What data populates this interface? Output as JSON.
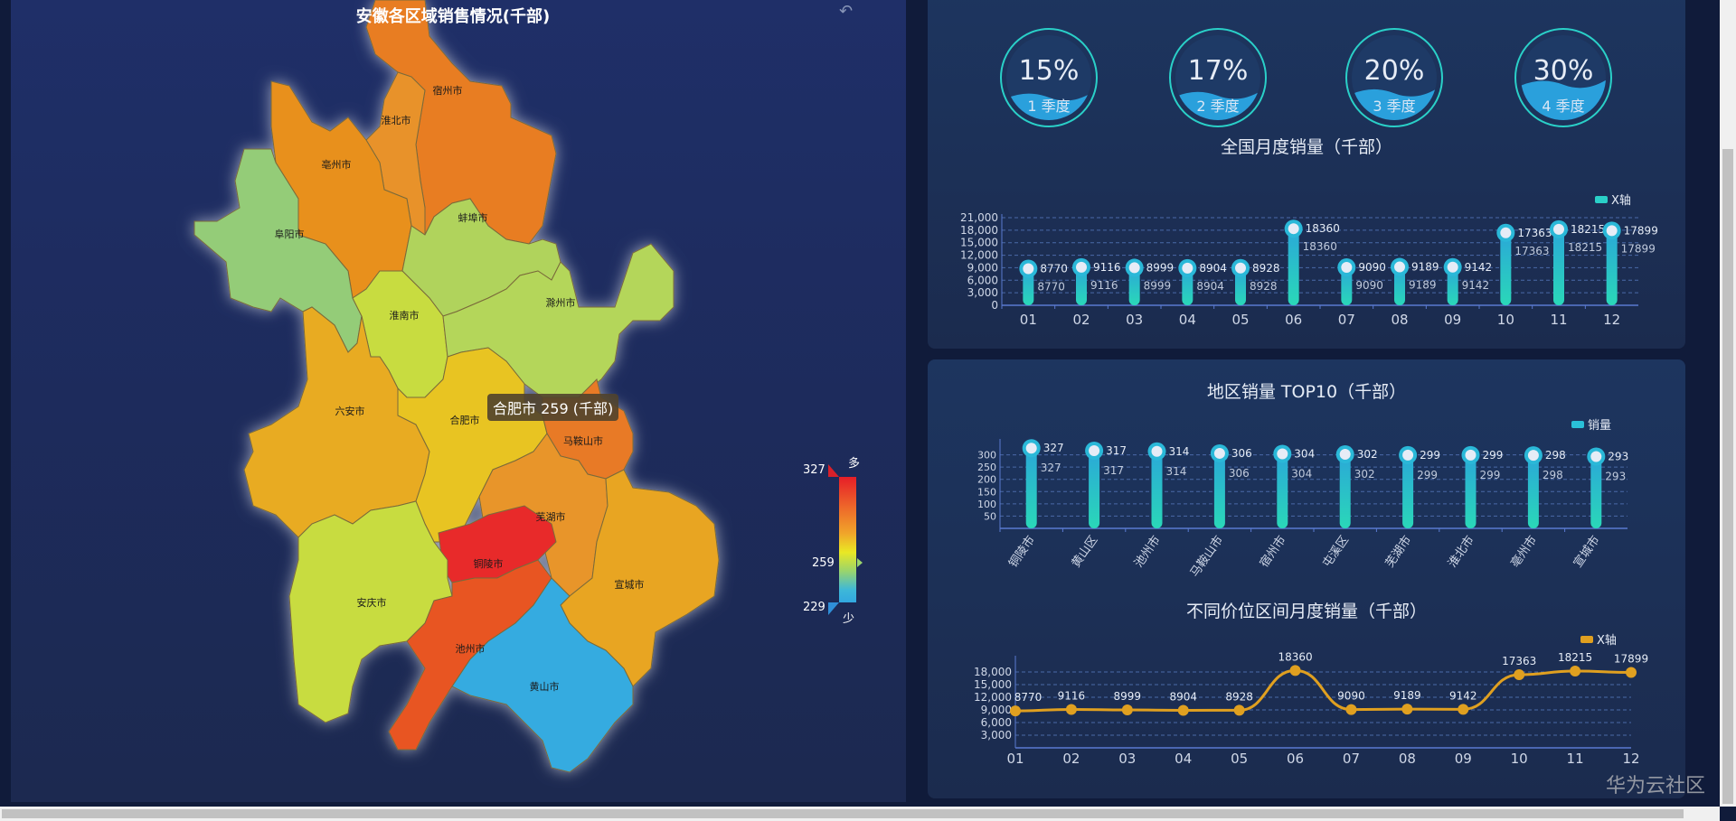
{
  "map": {
    "title": "安徽各区域销售情况(千部)",
    "restore_icon": "restore-icon",
    "tooltip": "合肥市 259 (千部)",
    "visual_map": {
      "max": "327",
      "current": "259",
      "min": "229",
      "high_label": "多",
      "low_label": "少"
    },
    "regions": [
      {
        "name": "宿州市",
        "color": "#e87d24"
      },
      {
        "name": "淮北市",
        "color": "#e8922a"
      },
      {
        "name": "亳州市",
        "color": "#e8901f"
      },
      {
        "name": "阜阳市",
        "color": "#94cc78"
      },
      {
        "name": "蚌埠市",
        "color": "#b0d35c"
      },
      {
        "name": "淮南市",
        "color": "#c8dc40"
      },
      {
        "name": "滁州市",
        "color": "#b4d65a"
      },
      {
        "name": "六安市",
        "color": "#e8ab22"
      },
      {
        "name": "合肥市",
        "color": "#e8c420"
      },
      {
        "name": "马鞍山市",
        "color": "#e87a28"
      },
      {
        "name": "芜湖市",
        "color": "#e8952a"
      },
      {
        "name": "铜陵市",
        "color": "#e82a2a"
      },
      {
        "name": "宣城市",
        "color": "#e8a522"
      },
      {
        "name": "安庆市",
        "color": "#c8dc40"
      },
      {
        "name": "池州市",
        "color": "#e85522"
      },
      {
        "name": "黄山市",
        "color": "#35abe0"
      }
    ]
  },
  "gauges": [
    {
      "percent": "15%",
      "label": "1 季度",
      "level": 0.15
    },
    {
      "percent": "17%",
      "label": "2 季度",
      "level": 0.17
    },
    {
      "percent": "20%",
      "label": "3 季度",
      "level": 0.2
    },
    {
      "percent": "30%",
      "label": "4 季度",
      "level": 0.3
    }
  ],
  "chart_data": [
    {
      "type": "bar",
      "title": "全国月度销量（千部）",
      "categories": [
        "01",
        "02",
        "03",
        "04",
        "05",
        "06",
        "07",
        "08",
        "09",
        "10",
        "11",
        "12"
      ],
      "series": [
        {
          "name": "X轴",
          "values": [
            8770,
            9116,
            8999,
            8904,
            8928,
            18360,
            9090,
            9189,
            9142,
            17363,
            18215,
            17899
          ]
        }
      ],
      "yticks": [
        "0",
        "3,000",
        "6,000",
        "9,000",
        "12,000",
        "15,000",
        "18,000",
        "21,000"
      ],
      "ylim": [
        0,
        21000
      ],
      "grid": true,
      "legend": "top-right",
      "color": "#2ad0c8"
    },
    {
      "type": "bar",
      "title": "地区销量 TOP10（千部）",
      "categories": [
        "铜陵市",
        "黄山区",
        "池州市",
        "马鞍山市",
        "宿州市",
        "屯溪区",
        "芜湖市",
        "淮北市",
        "亳州市",
        "宣城市"
      ],
      "series": [
        {
          "name": "销量",
          "values": [
            327,
            317,
            314,
            306,
            304,
            302,
            299,
            299,
            298,
            293
          ]
        }
      ],
      "yticks": [
        "50",
        "100",
        "150",
        "200",
        "250",
        "300"
      ],
      "ylim": [
        0,
        350
      ],
      "grid": true,
      "legend": "top-right",
      "color": "#2ad0c8"
    },
    {
      "type": "line",
      "title": "不同价位区间月度销量（千部）",
      "categories": [
        "01",
        "02",
        "03",
        "04",
        "05",
        "06",
        "07",
        "08",
        "09",
        "10",
        "11",
        "12"
      ],
      "series": [
        {
          "name": "X轴",
          "values": [
            8770,
            9116,
            8999,
            8904,
            8928,
            18360,
            9090,
            9189,
            9142,
            17363,
            18215,
            17899
          ]
        }
      ],
      "yticks": [
        "3,000",
        "6,000",
        "9,000",
        "12,000",
        "15,000",
        "18,000"
      ],
      "ylim": [
        0,
        21000
      ],
      "grid": true,
      "legend": "top-right",
      "color": "#e0a020"
    }
  ],
  "watermark": "华为云社区"
}
